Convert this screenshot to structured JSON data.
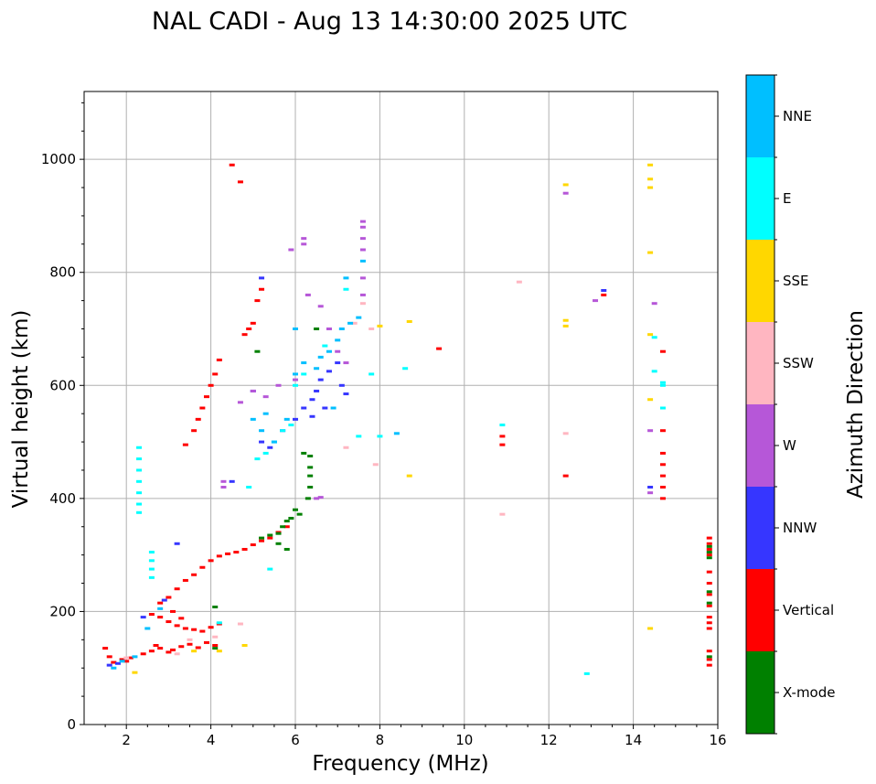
{
  "chart_data": {
    "type": "scatter",
    "title": "NAL CADI - Aug 13 14:30:00 2025 UTC",
    "xlabel": "Frequency (MHz)",
    "ylabel": "Virtual height (km)",
    "xlim": [
      1,
      16
    ],
    "ylim": [
      0,
      1120
    ],
    "xticks": [
      2,
      4,
      6,
      8,
      10,
      12,
      14,
      16
    ],
    "yticks": [
      0,
      200,
      400,
      600,
      800,
      1000
    ],
    "grid": true,
    "colorbar": {
      "label": "Azimuth Direction",
      "categories": [
        "X-mode",
        "Vertical",
        "NNW",
        "W",
        "SSW",
        "SSE",
        "E",
        "NNE"
      ],
      "colors": {
        "X-mode": "#008000",
        "Vertical": "#ff0000",
        "NNW": "#3636ff",
        "W": "#b657d8",
        "SSW": "#ffb6c1",
        "SSE": "#ffd700",
        "E": "#00ffff",
        "NNE": "#00bfff"
      }
    },
    "series": [
      {
        "name": "Vertical",
        "points": [
          [
            1.5,
            135
          ],
          [
            1.6,
            120
          ],
          [
            1.7,
            110
          ],
          [
            1.9,
            115
          ],
          [
            2.0,
            112
          ],
          [
            2.1,
            118
          ],
          [
            2.4,
            125
          ],
          [
            2.6,
            130
          ],
          [
            2.7,
            140
          ],
          [
            2.8,
            135
          ],
          [
            3.0,
            128
          ],
          [
            3.1,
            132
          ],
          [
            3.3,
            138
          ],
          [
            3.5,
            142
          ],
          [
            3.7,
            136
          ],
          [
            3.9,
            145
          ],
          [
            4.1,
            140
          ],
          [
            2.6,
            195
          ],
          [
            2.8,
            190
          ],
          [
            3.0,
            182
          ],
          [
            3.2,
            175
          ],
          [
            3.4,
            170
          ],
          [
            3.6,
            168
          ],
          [
            3.8,
            165
          ],
          [
            4.0,
            172
          ],
          [
            4.2,
            178
          ],
          [
            3.1,
            200
          ],
          [
            3.3,
            188
          ],
          [
            2.8,
            215
          ],
          [
            3.0,
            225
          ],
          [
            3.2,
            240
          ],
          [
            3.4,
            255
          ],
          [
            3.6,
            265
          ],
          [
            3.8,
            278
          ],
          [
            4.0,
            290
          ],
          [
            4.2,
            298
          ],
          [
            4.4,
            302
          ],
          [
            4.6,
            305
          ],
          [
            4.8,
            310
          ],
          [
            5.0,
            318
          ],
          [
            5.2,
            325
          ],
          [
            5.4,
            330
          ],
          [
            5.6,
            340
          ],
          [
            5.8,
            350
          ],
          [
            3.4,
            495
          ],
          [
            3.6,
            520
          ],
          [
            3.7,
            540
          ],
          [
            3.8,
            560
          ],
          [
            3.9,
            580
          ],
          [
            4.0,
            600
          ],
          [
            4.1,
            620
          ],
          [
            4.2,
            645
          ],
          [
            4.8,
            690
          ],
          [
            4.9,
            700
          ],
          [
            5.0,
            710
          ],
          [
            5.1,
            750
          ],
          [
            5.2,
            770
          ],
          [
            4.5,
            990
          ],
          [
            4.7,
            960
          ],
          [
            9.4,
            665
          ],
          [
            10.9,
            510
          ],
          [
            10.9,
            495
          ],
          [
            12.4,
            440
          ],
          [
            13.3,
            760
          ],
          [
            14.7,
            660
          ],
          [
            14.7,
            520
          ],
          [
            14.7,
            480
          ],
          [
            14.7,
            460
          ],
          [
            14.7,
            440
          ],
          [
            14.7,
            420
          ],
          [
            14.7,
            400
          ],
          [
            15.8,
            330
          ],
          [
            15.8,
            320
          ],
          [
            15.8,
            310
          ],
          [
            15.8,
            300
          ],
          [
            15.8,
            270
          ],
          [
            15.8,
            250
          ],
          [
            15.8,
            230
          ],
          [
            15.8,
            210
          ],
          [
            15.8,
            190
          ],
          [
            15.8,
            180
          ],
          [
            15.8,
            170
          ],
          [
            15.8,
            130
          ],
          [
            15.8,
            115
          ],
          [
            15.8,
            105
          ]
        ]
      },
      {
        "name": "X-mode",
        "points": [
          [
            4.1,
            135
          ],
          [
            4.1,
            208
          ],
          [
            5.2,
            330
          ],
          [
            5.4,
            335
          ],
          [
            5.6,
            338
          ],
          [
            5.7,
            350
          ],
          [
            5.8,
            360
          ],
          [
            5.9,
            365
          ],
          [
            6.0,
            380
          ],
          [
            6.1,
            372
          ],
          [
            6.3,
            400
          ],
          [
            6.35,
            420
          ],
          [
            6.35,
            440
          ],
          [
            6.35,
            455
          ],
          [
            6.35,
            475
          ],
          [
            6.5,
            700
          ],
          [
            6.2,
            480
          ],
          [
            5.6,
            320
          ],
          [
            5.1,
            660
          ],
          [
            5.8,
            310
          ],
          [
            15.8,
            315
          ],
          [
            15.8,
            305
          ],
          [
            15.8,
            295
          ],
          [
            15.8,
            235
          ],
          [
            15.8,
            215
          ],
          [
            15.8,
            120
          ]
        ]
      },
      {
        "name": "NNW",
        "points": [
          [
            1.6,
            105
          ],
          [
            1.8,
            108
          ],
          [
            2.4,
            190
          ],
          [
            2.9,
            220
          ],
          [
            3.2,
            320
          ],
          [
            5.0,
            590
          ],
          [
            5.2,
            500
          ],
          [
            5.4,
            490
          ],
          [
            5.7,
            520
          ],
          [
            6.0,
            540
          ],
          [
            6.2,
            560
          ],
          [
            6.4,
            575
          ],
          [
            6.5,
            590
          ],
          [
            6.6,
            610
          ],
          [
            6.8,
            625
          ],
          [
            7.0,
            640
          ],
          [
            7.1,
            600
          ],
          [
            7.2,
            585
          ],
          [
            6.4,
            545
          ],
          [
            6.7,
            560
          ],
          [
            4.5,
            430
          ],
          [
            5.2,
            790
          ],
          [
            13.3,
            768
          ],
          [
            14.4,
            420
          ]
        ]
      },
      {
        "name": "W",
        "points": [
          [
            4.3,
            420
          ],
          [
            4.3,
            430
          ],
          [
            4.7,
            570
          ],
          [
            5.0,
            590
          ],
          [
            5.3,
            580
          ],
          [
            5.6,
            600
          ],
          [
            6.0,
            610
          ],
          [
            6.2,
            850
          ],
          [
            6.2,
            860
          ],
          [
            6.3,
            760
          ],
          [
            6.6,
            740
          ],
          [
            6.8,
            700
          ],
          [
            7.0,
            660
          ],
          [
            7.2,
            640
          ],
          [
            7.6,
            890
          ],
          [
            7.6,
            880
          ],
          [
            7.6,
            860
          ],
          [
            7.6,
            840
          ],
          [
            7.6,
            790
          ],
          [
            7.6,
            760
          ],
          [
            6.5,
            400
          ],
          [
            6.6,
            402
          ],
          [
            5.9,
            840
          ],
          [
            12.4,
            940
          ],
          [
            13.1,
            750
          ],
          [
            14.5,
            745
          ],
          [
            14.4,
            520
          ],
          [
            14.4,
            410
          ]
        ]
      },
      {
        "name": "SSW",
        "points": [
          [
            2.0,
            118
          ],
          [
            3.2,
            125
          ],
          [
            3.5,
            150
          ],
          [
            4.1,
            155
          ],
          [
            4.7,
            178
          ],
          [
            7.6,
            745
          ],
          [
            7.8,
            700
          ],
          [
            7.4,
            710
          ],
          [
            7.2,
            490
          ],
          [
            7.9,
            460
          ],
          [
            10.9,
            372
          ],
          [
            11.3,
            783
          ],
          [
            12.4,
            515
          ]
        ]
      },
      {
        "name": "SSE",
        "points": [
          [
            2.2,
            92
          ],
          [
            3.6,
            130
          ],
          [
            4.2,
            130
          ],
          [
            4.8,
            140
          ],
          [
            8.0,
            705
          ],
          [
            8.7,
            713
          ],
          [
            8.7,
            440
          ],
          [
            12.4,
            955
          ],
          [
            12.4,
            715
          ],
          [
            12.4,
            705
          ],
          [
            14.4,
            990
          ],
          [
            14.4,
            965
          ],
          [
            14.4,
            950
          ],
          [
            14.4,
            835
          ],
          [
            14.4,
            690
          ],
          [
            14.4,
            575
          ],
          [
            14.4,
            170
          ]
        ]
      },
      {
        "name": "E",
        "points": [
          [
            2.3,
            490
          ],
          [
            2.3,
            470
          ],
          [
            2.3,
            450
          ],
          [
            2.3,
            430
          ],
          [
            2.3,
            410
          ],
          [
            2.3,
            390
          ],
          [
            2.3,
            375
          ],
          [
            2.6,
            305
          ],
          [
            2.6,
            290
          ],
          [
            2.6,
            275
          ],
          [
            2.6,
            260
          ],
          [
            5.1,
            470
          ],
          [
            5.3,
            480
          ],
          [
            5.5,
            500
          ],
          [
            5.7,
            520
          ],
          [
            5.9,
            530
          ],
          [
            6.0,
            600
          ],
          [
            6.2,
            620
          ],
          [
            6.7,
            670
          ],
          [
            7.2,
            770
          ],
          [
            7.5,
            510
          ],
          [
            7.8,
            620
          ],
          [
            8.0,
            510
          ],
          [
            8.6,
            630
          ],
          [
            4.2,
            180
          ],
          [
            4.9,
            420
          ],
          [
            5.4,
            275
          ],
          [
            10.9,
            530
          ],
          [
            12.9,
            90
          ],
          [
            14.5,
            685
          ],
          [
            14.5,
            625
          ],
          [
            14.7,
            605
          ],
          [
            14.7,
            600
          ],
          [
            14.7,
            560
          ]
        ]
      },
      {
        "name": "NNE",
        "points": [
          [
            1.7,
            100
          ],
          [
            1.9,
            112
          ],
          [
            2.2,
            120
          ],
          [
            2.5,
            170
          ],
          [
            2.8,
            205
          ],
          [
            5.0,
            540
          ],
          [
            5.2,
            520
          ],
          [
            5.5,
            500
          ],
          [
            5.8,
            540
          ],
          [
            6.0,
            620
          ],
          [
            6.2,
            640
          ],
          [
            6.5,
            630
          ],
          [
            6.6,
            650
          ],
          [
            6.8,
            660
          ],
          [
            7.0,
            680
          ],
          [
            7.1,
            700
          ],
          [
            7.3,
            710
          ],
          [
            7.5,
            720
          ],
          [
            7.6,
            820
          ],
          [
            7.2,
            790
          ],
          [
            6.9,
            560
          ],
          [
            5.3,
            550
          ],
          [
            6.0,
            700
          ],
          [
            8.4,
            515
          ]
        ]
      }
    ]
  }
}
